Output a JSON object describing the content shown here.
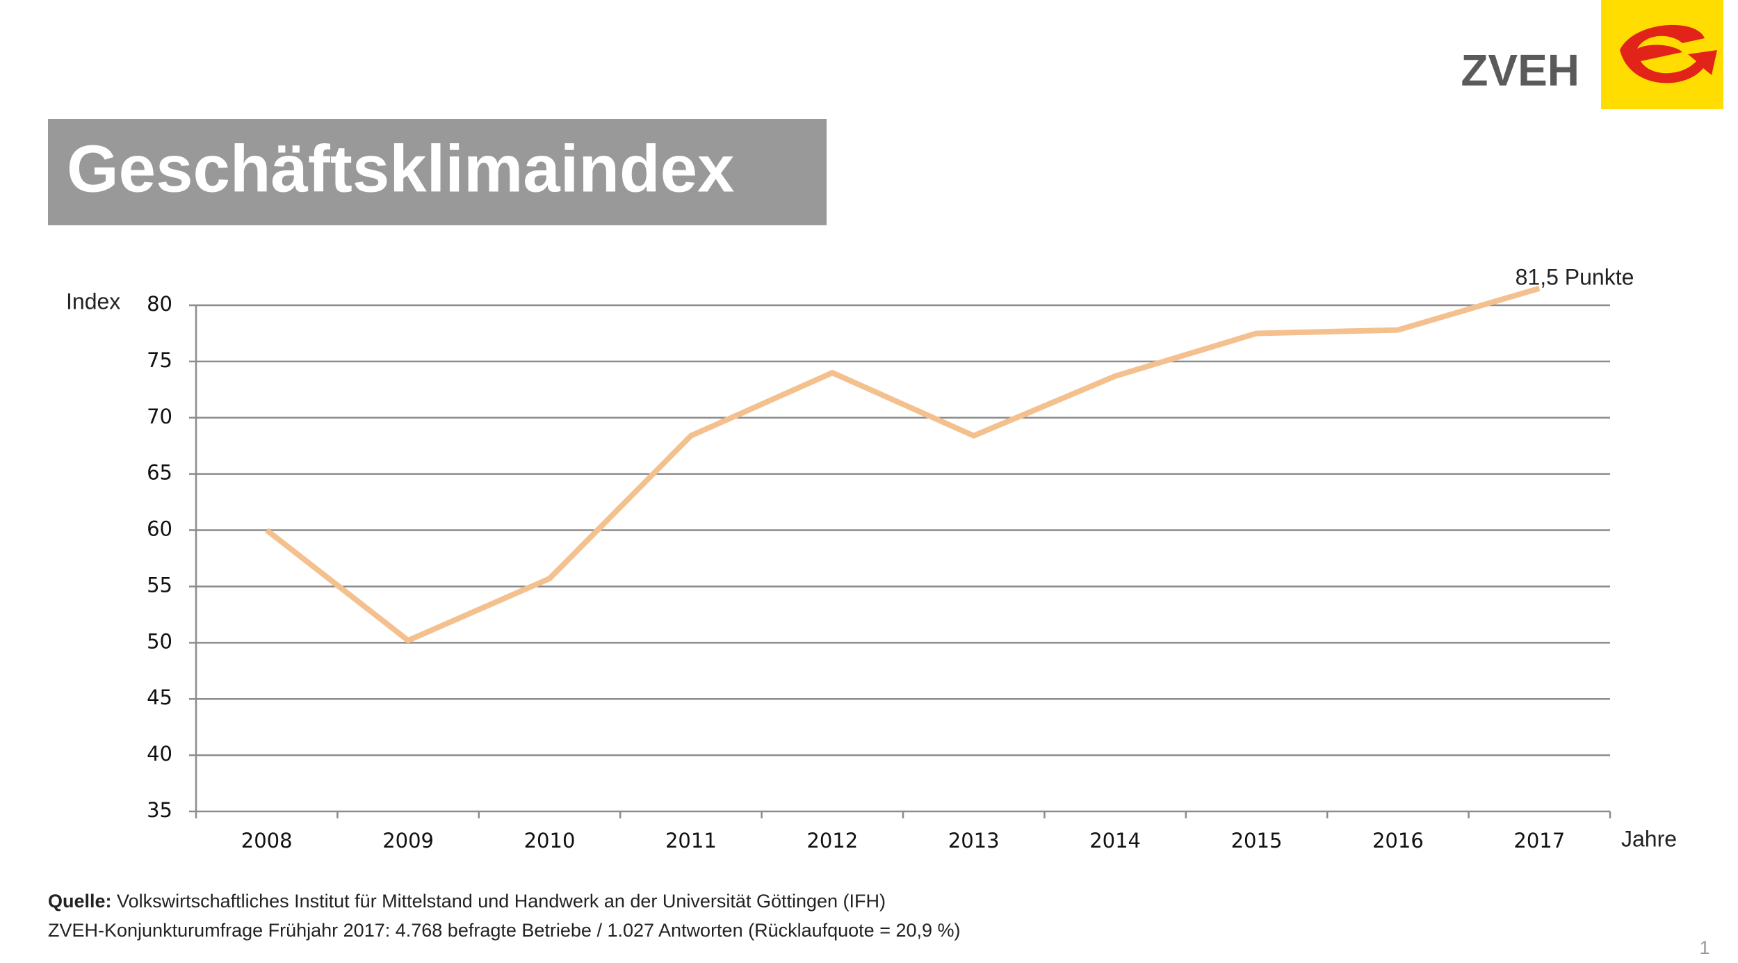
{
  "chart_data": {
    "type": "line",
    "title": "Geschäftsklimaindex",
    "y_label": "Index",
    "x_label": "Jahre",
    "annotation": "81,5 Punkte",
    "categories": [
      "2008",
      "2009",
      "2010",
      "2011",
      "2012",
      "2013",
      "2014",
      "2015",
      "2016",
      "2017"
    ],
    "series": [
      {
        "name": "Geschäftsklimaindex",
        "color": "#f4c08e",
        "values": [
          60,
          50.2,
          55.7,
          68.4,
          74,
          68.4,
          73.7,
          77.5,
          77.8,
          81.5
        ]
      }
    ],
    "ylim": [
      35,
      80
    ],
    "yticks": [
      35,
      40,
      45,
      50,
      55,
      60,
      65,
      70,
      75,
      80
    ],
    "grid": true,
    "legend": false
  },
  "logo": "ZVEH",
  "footer": {
    "source_label": "Quelle:",
    "source_text": "Volkswirtschaftliches Institut für Mittelstand und Handwerk an der Universität Göttingen (IFH)",
    "survey": "ZVEH-Konjunkturumfrage Frühjahr 2017: 4.768 befragte Betriebe / 1.027 Antworten (Rücklaufquote = 20,9 %)"
  },
  "page_number": "1"
}
